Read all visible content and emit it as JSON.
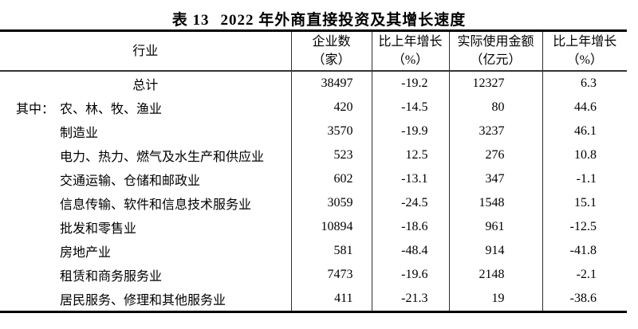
{
  "title": {
    "label": "表 13",
    "caption": "2022 年外商直接投资及其增长速度"
  },
  "table": {
    "header": {
      "industry": "行业",
      "cols": [
        {
          "l1": "企业数",
          "l2": "（家）"
        },
        {
          "l1": "比上年增长",
          "l2": "（%）"
        },
        {
          "l1": "实际使用金额",
          "l2": "（亿元）"
        },
        {
          "l1": "比上年增长",
          "l2": "（%）"
        }
      ]
    },
    "rows": [
      {
        "prefix": "",
        "name": "总计",
        "v1": "38497",
        "v2": "-19.2",
        "v3": "12327",
        "v4": "6.3"
      },
      {
        "prefix": "其中：",
        "name": "农、林、牧、渔业",
        "v1": "420",
        "v2": "-14.5",
        "v3": "80",
        "v4": "44.6"
      },
      {
        "prefix": "",
        "name": "制造业",
        "v1": "3570",
        "v2": "-19.9",
        "v3": "3237",
        "v4": "46.1"
      },
      {
        "prefix": "",
        "name": "电力、热力、燃气及水生产和供应业",
        "v1": "523",
        "v2": "12.5",
        "v3": "276",
        "v4": "10.8"
      },
      {
        "prefix": "",
        "name": "交通运输、仓储和邮政业",
        "v1": "602",
        "v2": "-13.1",
        "v3": "347",
        "v4": "-1.1"
      },
      {
        "prefix": "",
        "name": "信息传输、软件和信息技术服务业",
        "v1": "3059",
        "v2": "-24.5",
        "v3": "1548",
        "v4": "15.1"
      },
      {
        "prefix": "",
        "name": "批发和零售业",
        "v1": "10894",
        "v2": "-18.6",
        "v3": "961",
        "v4": "-12.5"
      },
      {
        "prefix": "",
        "name": "房地产业",
        "v1": "581",
        "v2": "-48.4",
        "v3": "914",
        "v4": "-41.8"
      },
      {
        "prefix": "",
        "name": "租赁和商务服务业",
        "v1": "7473",
        "v2": "-19.6",
        "v3": "2148",
        "v4": "-2.1"
      },
      {
        "prefix": "",
        "name": "居民服务、修理和其他服务业",
        "v1": "411",
        "v2": "-21.3",
        "v3": "19",
        "v4": "-38.6"
      }
    ]
  }
}
